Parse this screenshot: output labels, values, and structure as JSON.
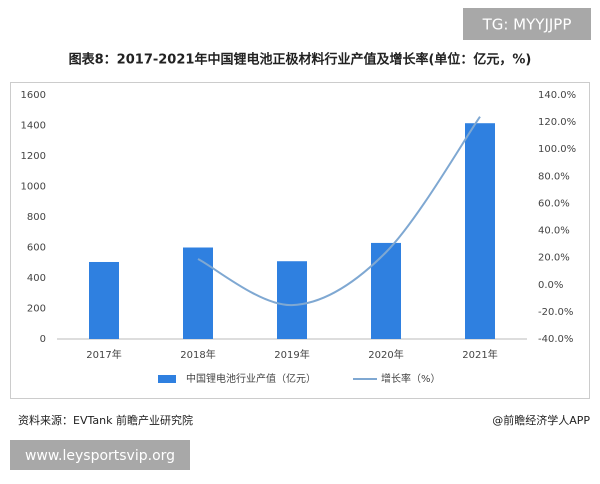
{
  "header": {
    "badge": "TG: MYYJJPP"
  },
  "chart_data": {
    "type": "bar",
    "title": "图表8：2017-2021年中国锂电池正极材料行业产值及增长率(单位：亿元，%)",
    "categories": [
      "2017年",
      "2018年",
      "2019年",
      "2020年",
      "2021年"
    ],
    "series": [
      {
        "name": "中国锂电池行业产值（亿元）",
        "type": "bar",
        "color": "#2f80e0",
        "values": [
          505,
          600,
          510,
          630,
          1415
        ]
      },
      {
        "name": "增长率（%）",
        "type": "line",
        "axis": "y2",
        "color": "#7fa8d2",
        "values": [
          null,
          19,
          -15,
          24,
          124
        ]
      }
    ],
    "ylim": [
      0,
      1600
    ],
    "yticks": [
      0,
      200,
      400,
      600,
      800,
      1000,
      1200,
      1400,
      1600
    ],
    "y2lim": [
      -40,
      140
    ],
    "y2ticks": [
      {
        "value": -40,
        "label": "-40.0%"
      },
      {
        "value": -20,
        "label": "-20.0%"
      },
      {
        "value": 0,
        "label": "0.0%"
      },
      {
        "value": 20,
        "label": "20.0%"
      },
      {
        "value": 40,
        "label": "40.0%"
      },
      {
        "value": 60,
        "label": "60.0%"
      },
      {
        "value": 80,
        "label": "80.0%"
      },
      {
        "value": 100,
        "label": "100.0%"
      },
      {
        "value": 120,
        "label": "120.0%"
      },
      {
        "value": 140,
        "label": "140.0%"
      }
    ],
    "grid": false
  },
  "footer": {
    "source": "资料来源：EVTank 前瞻产业研究院",
    "credit": "@前瞻经济学人APP",
    "url": "www.leysportsvip.org"
  }
}
